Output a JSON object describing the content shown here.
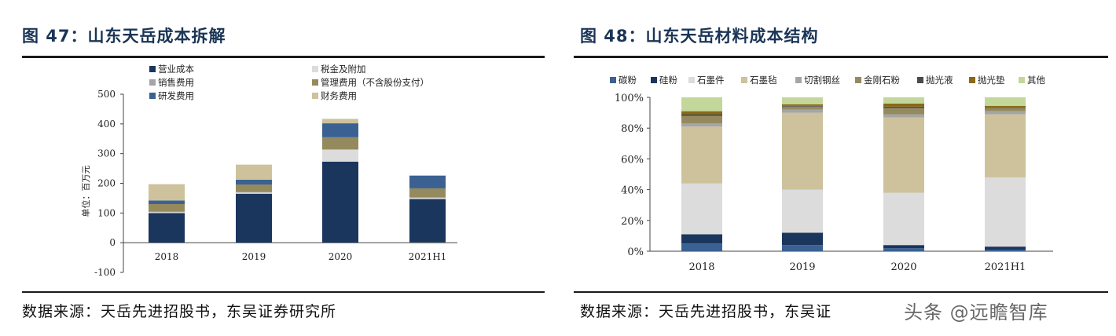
{
  "left_panel": {
    "title": "图 47：山东天岳成本拆解",
    "source": "数据来源：天岳先进招股书，东吴证券研究所"
  },
  "right_panel": {
    "title": "图 48：山东天岳材料成本结构",
    "source": "数据来源：天岳先进招股书，东吴证"
  },
  "watermark": "头条 @远瞻智库",
  "colors": {
    "title": "#1a3556",
    "rule": "#1a1a1a",
    "axis": "#444444"
  },
  "chart_data": [
    {
      "type": "bar",
      "stacked": true,
      "categories": [
        "2018",
        "2019",
        "2020",
        "2021H1"
      ],
      "ylabel": "单位：百万元",
      "ylim": [
        -100,
        500
      ],
      "yticks": [
        500,
        400,
        300,
        200,
        100,
        0,
        -100
      ],
      "ytick_labels": [
        "500",
        "400",
        "300",
        "200",
        "100",
        "0",
        "-100"
      ],
      "grid": false,
      "legend_position": "top",
      "series": [
        {
          "name": "营业成本",
          "color": "#1b365d",
          "values": [
            100,
            165,
            273,
            147
          ]
        },
        {
          "name": "税金及附加",
          "color": "#dcdcdc",
          "values": [
            3,
            4,
            40,
            4
          ]
        },
        {
          "name": "销售费用",
          "color": "#a5a5a5",
          "values": [
            2,
            2,
            2,
            2
          ]
        },
        {
          "name": "管理费用（不含股份支付）",
          "color": "#958a5e",
          "values": [
            25,
            25,
            40,
            30
          ]
        },
        {
          "name": "研发费用",
          "color": "#3b6193",
          "values": [
            12,
            16,
            47,
            43
          ]
        },
        {
          "name": "财务费用",
          "color": "#cdc29c",
          "values": [
            55,
            51,
            15,
            -3
          ]
        }
      ]
    },
    {
      "type": "bar",
      "stacked": true,
      "percent": true,
      "categories": [
        "2018",
        "2019",
        "2020",
        "2021H1"
      ],
      "ylim": [
        0,
        100
      ],
      "yticks": [
        0,
        20,
        40,
        60,
        80,
        100
      ],
      "ytick_labels": [
        "0%",
        "20%",
        "40%",
        "60%",
        "80%",
        "100%"
      ],
      "grid": false,
      "legend_position": "top",
      "series": [
        {
          "name": "碳粉",
          "color": "#3b6193",
          "values": [
            5,
            4,
            2,
            1
          ]
        },
        {
          "name": "硅粉",
          "color": "#1b365d",
          "values": [
            6,
            8,
            2,
            2
          ]
        },
        {
          "name": "石墨件",
          "color": "#dcdcdc",
          "values": [
            33,
            28,
            34,
            45
          ]
        },
        {
          "name": "石墨毡",
          "color": "#cdc29c",
          "values": [
            37,
            50,
            49,
            41
          ]
        },
        {
          "name": "切割钢丝",
          "color": "#a5a5a5",
          "values": [
            2,
            2,
            2,
            2
          ]
        },
        {
          "name": "金刚石粉",
          "color": "#958a5e",
          "values": [
            5,
            2,
            4,
            2
          ]
        },
        {
          "name": "抛光液",
          "color": "#4a4a4a",
          "values": [
            1,
            0.5,
            1,
            0.5
          ]
        },
        {
          "name": "抛光垫",
          "color": "#8b6914",
          "values": [
            2,
            1,
            2,
            1
          ]
        },
        {
          "name": "其他",
          "color": "#c4d79b",
          "values": [
            9,
            4.5,
            4,
            5.5
          ]
        }
      ]
    }
  ]
}
